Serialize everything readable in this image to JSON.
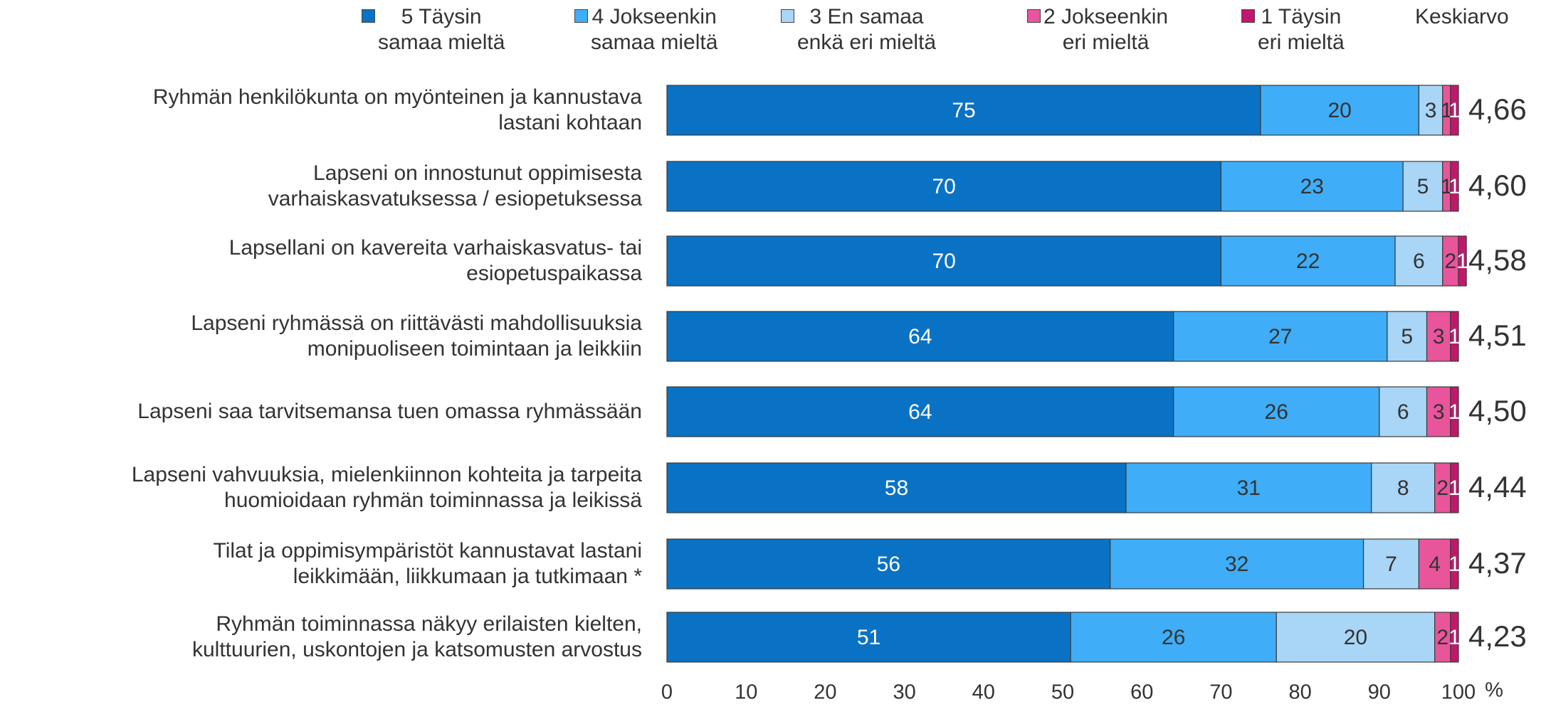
{
  "chart_data": {
    "type": "stacked_bar_horizontal",
    "categories": [
      "Ryhmän henkilökunta on myönteinen ja kannustava\nlastani kohtaan",
      "Lapseni on innostunut oppimisesta\nvarhaiskasvatuksessa / esiopetuksessa",
      "Lapsellani on kavereita varhaiskasvatus- tai\nesiopetuspaikassa",
      "Lapseni ryhmässä on riittävästi mahdollisuuksia\nmonipuoliseen toimintaan ja leikkiin",
      "Lapseni saa tarvitsemansa tuen omassa ryhmässään",
      "Lapseni vahvuuksia, mielenkiinnon kohteita ja tarpeita\nhuomioidaan ryhmän toiminnassa ja leikissä",
      "Tilat ja oppimisympäristöt kannustavat lastani\nleikkimään, liikkumaan ja tutkimaan *",
      "Ryhmän toiminnassa näkyy erilaisten kielten,\nkulttuurien, uskontojen ja katsomusten arvostus"
    ],
    "series": [
      {
        "name": "5 Täysin\nsamaa mieltä",
        "color": "#0a72c4",
        "label_color": "#ffffff",
        "values": [
          75,
          70,
          70,
          64,
          64,
          58,
          56,
          51
        ]
      },
      {
        "name": "4 Jokseenkin\nsamaa mieltä",
        "color": "#3fadf7",
        "label_color": "#333333",
        "values": [
          20,
          23,
          22,
          27,
          26,
          31,
          32,
          26
        ]
      },
      {
        "name": "3 En samaa\nenkä eri mieltä",
        "color": "#a9d5f7",
        "label_color": "#333333",
        "values": [
          3,
          5,
          6,
          5,
          6,
          8,
          7,
          20
        ]
      },
      {
        "name": "2 Jokseenkin\neri mieltä",
        "color": "#e8559b",
        "label_color": "#333333",
        "values": [
          1,
          1,
          2,
          3,
          3,
          2,
          4,
          2
        ]
      },
      {
        "name": "1 Täysin\neri mieltä",
        "color": "#c2186b",
        "label_color": "#ffffff",
        "values": [
          1,
          1,
          1,
          1,
          1,
          1,
          1,
          1
        ]
      }
    ],
    "average": {
      "name": "Keskiarvo",
      "values": [
        4.66,
        4.6,
        4.58,
        4.51,
        4.5,
        4.44,
        4.37,
        4.23
      ],
      "value_labels": [
        "4,66",
        "4,60",
        "4,58",
        "4,51",
        "4,50",
        "4,44",
        "4,37",
        "4,23"
      ]
    },
    "xlim": [
      0,
      100
    ],
    "xticks": [
      0,
      10,
      20,
      30,
      40,
      50,
      60,
      70,
      80,
      90,
      100
    ],
    "x_label": "%"
  }
}
